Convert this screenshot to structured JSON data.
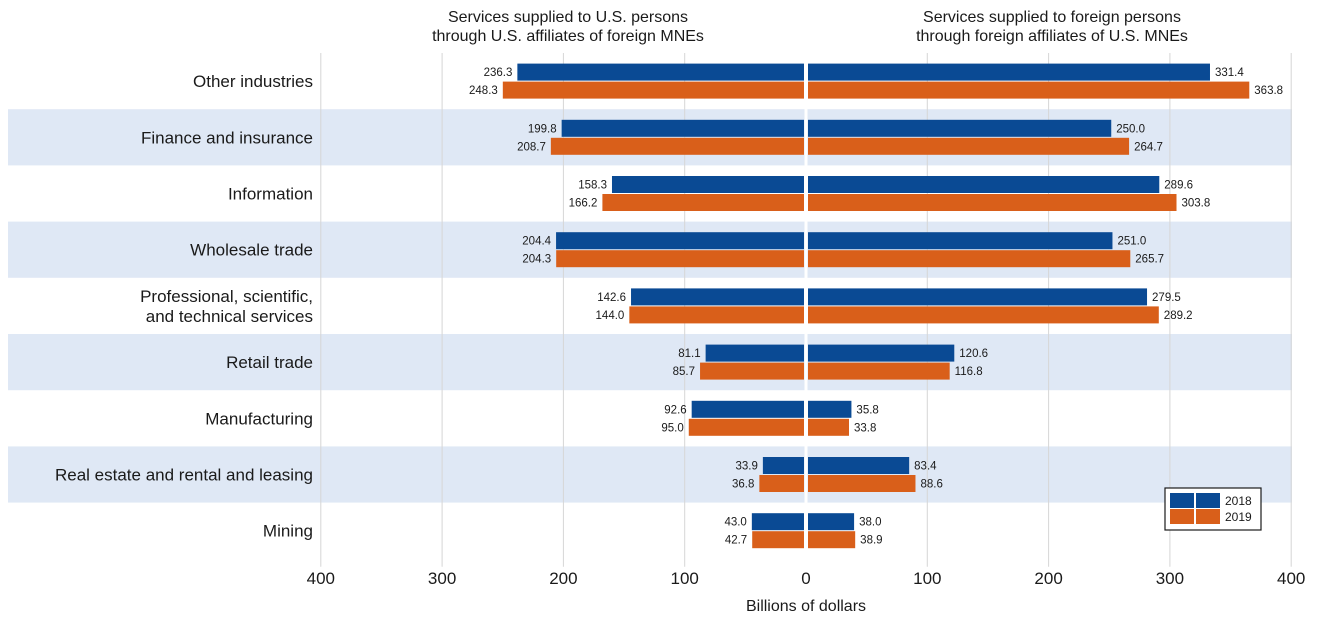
{
  "chart_data": {
    "type": "bar",
    "orientation": "horizontal",
    "layout": "back-to-back",
    "panel_titles": {
      "left": [
        "Services supplied to U.S. persons",
        "through U.S. affiliates of foreign MNEs"
      ],
      "right": [
        "Services supplied to foreign persons",
        "through foreign affiliates of U.S. MNEs"
      ]
    },
    "xlabel": "Billions of dollars",
    "xlim": [
      -400,
      400
    ],
    "xticks": [
      400,
      300,
      200,
      100,
      0,
      100,
      200,
      300,
      400
    ],
    "categories": [
      [
        "Other industries"
      ],
      [
        "Finance and insurance"
      ],
      [
        "Information"
      ],
      [
        "Wholesale trade"
      ],
      [
        "Professional, scientific,",
        "and technical services"
      ],
      [
        "Retail trade"
      ],
      [
        "Manufacturing"
      ],
      [
        "Real estate and rental and leasing"
      ],
      [
        "Mining"
      ]
    ],
    "series": [
      {
        "name": "2018",
        "color": "#0a4a94",
        "left_values": [
          "236.3",
          "199.8",
          "158.3",
          "204.4",
          "142.6",
          "81.1",
          "92.6",
          "33.9",
          "43.0"
        ],
        "right_values": [
          "331.4",
          "250.0",
          "289.6",
          "251.0",
          "279.5",
          "120.6",
          "35.8",
          "83.4",
          "38.0"
        ]
      },
      {
        "name": "2019",
        "color": "#d95f1a",
        "left_values": [
          "248.3",
          "208.7",
          "166.2",
          "204.3",
          "144.0",
          "85.7",
          "95.0",
          "36.8",
          "42.7"
        ],
        "right_values": [
          "363.8",
          "264.7",
          "303.8",
          "265.7",
          "289.2",
          "116.8",
          "33.8",
          "88.6",
          "38.9"
        ]
      }
    ],
    "legend_position": "bottom-right",
    "band_color": "#dfe8f5",
    "grid": true
  }
}
